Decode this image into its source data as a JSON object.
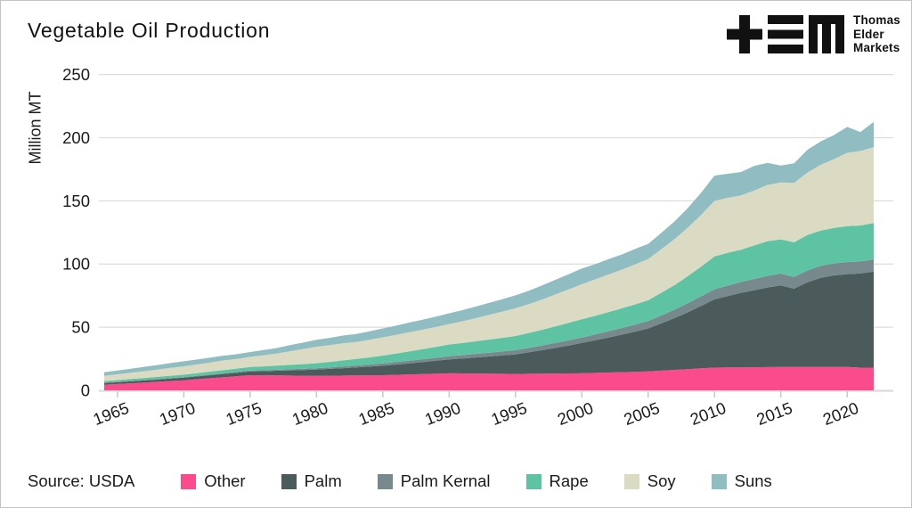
{
  "meta": {
    "source": "Source: USDA"
  },
  "logo": {
    "lines": [
      "Thomas",
      "Elder",
      "Markets"
    ],
    "color": "#111111"
  },
  "chart_data": {
    "type": "area",
    "stacked": true,
    "title": "Vegetable Oil Production",
    "ylabel": "Million MT",
    "ylim": [
      0,
      250
    ],
    "yticks": [
      0,
      50,
      100,
      150,
      200,
      250
    ],
    "xticks": [
      1965,
      1970,
      1975,
      1980,
      1985,
      1990,
      1995,
      2000,
      2005,
      2010,
      2015,
      2020
    ],
    "x_range": [
      1964,
      2022
    ],
    "grid": "horizontal-light",
    "legend_position": "bottom",
    "axis_text_color": "#1a1a1a",
    "gridline_color": "#dcdcdc",
    "tick_color": "#c9c9c9",
    "x": [
      1964,
      1965,
      1966,
      1967,
      1968,
      1969,
      1970,
      1971,
      1972,
      1973,
      1974,
      1975,
      1976,
      1977,
      1978,
      1979,
      1980,
      1981,
      1982,
      1983,
      1984,
      1985,
      1986,
      1987,
      1988,
      1989,
      1990,
      1991,
      1992,
      1993,
      1994,
      1995,
      1996,
      1997,
      1998,
      1999,
      2000,
      2001,
      2002,
      2003,
      2004,
      2005,
      2006,
      2007,
      2008,
      2009,
      2010,
      2011,
      2012,
      2013,
      2014,
      2015,
      2016,
      2017,
      2018,
      2019,
      2020,
      2021,
      2022
    ],
    "series": [
      {
        "name": "Other",
        "color": "#fa4b8c",
        "values": [
          4.5,
          5,
          5.6,
          6.2,
          6.8,
          7.4,
          8,
          8.8,
          9.6,
          10.4,
          11.2,
          12,
          11.9,
          11.8,
          11.7,
          11.6,
          11.5,
          11.6,
          11.7,
          11.8,
          11.9,
          12,
          12.3,
          12.6,
          12.9,
          13.2,
          13.5,
          13.4,
          13.3,
          13.2,
          13.1,
          13,
          13.1,
          13.2,
          13.3,
          13.4,
          13.5,
          13.8,
          14.1,
          14.4,
          14.7,
          15,
          15.6,
          16.2,
          16.8,
          17.4,
          18,
          18.1,
          18.2,
          18.3,
          18.4,
          18.5,
          18.5,
          18.5,
          18.5,
          18.5,
          18.5,
          18,
          18
        ]
      },
      {
        "name": "Palm",
        "color": "#4b5b5c",
        "values": [
          1.3,
          1.4,
          1.5,
          1.6,
          1.7,
          1.9,
          2,
          2.2,
          2.4,
          2.6,
          2.8,
          3,
          3.3,
          3.7,
          4.1,
          4.5,
          5,
          5.4,
          5.9,
          6.4,
          6.9,
          7.5,
          8.1,
          8.8,
          9.5,
          10.2,
          11,
          11.8,
          12.7,
          13.6,
          14.5,
          15.5,
          17,
          18.6,
          20.3,
          22.1,
          24,
          25.8,
          27.7,
          29.7,
          31.8,
          34,
          37.5,
          41,
          45,
          49.5,
          54,
          56.5,
          59,
          61,
          63,
          64.5,
          62,
          67,
          70.5,
          72.5,
          73.5,
          74.5,
          76
        ]
      },
      {
        "name": "Palm Kernal",
        "color": "#77898c",
        "values": [
          0.3,
          0.33,
          0.36,
          0.4,
          0.43,
          0.46,
          0.5,
          0.54,
          0.58,
          0.62,
          0.66,
          0.7,
          0.76,
          0.82,
          0.88,
          0.94,
          1,
          1.15,
          1.3,
          1.45,
          1.6,
          1.8,
          1.94,
          2.08,
          2.22,
          2.36,
          2.5,
          2.66,
          2.82,
          2.98,
          3.14,
          3.3,
          3.5,
          3.7,
          3.9,
          4.1,
          4.3,
          4.6,
          4.9,
          5.2,
          5.5,
          5.8,
          6.2,
          6.7,
          7.1,
          7.6,
          8,
          8.3,
          8.6,
          8.9,
          9.2,
          9.5,
          9.2,
          9.4,
          9.5,
          9.5,
          9.5,
          9.5,
          9.5
        ]
      },
      {
        "name": "Rape",
        "color": "#5ec3a2",
        "values": [
          1.3,
          1.4,
          1.5,
          1.6,
          1.7,
          1.8,
          1.9,
          2.1,
          2.3,
          2.4,
          2.6,
          2.8,
          3,
          3.2,
          3.5,
          3.7,
          4,
          4.4,
          4.8,
          5.2,
          5.7,
          6.2,
          6.8,
          7.4,
          8,
          8.6,
          9.3,
          9.6,
          10,
          10.4,
          10.8,
          11.2,
          11.8,
          12.4,
          13.1,
          13.8,
          14.5,
          14.8,
          15.2,
          15.6,
          16,
          16.5,
          18,
          19.5,
          21.5,
          23.5,
          26,
          26,
          25.5,
          26.5,
          27.5,
          27,
          27.5,
          28,
          28,
          28,
          28.5,
          28.5,
          29
        ]
      },
      {
        "name": "Soy",
        "color": "#dbdac3",
        "values": [
          4.2,
          4.6,
          5,
          5.4,
          5.8,
          6.2,
          6.6,
          6.9,
          7.2,
          7.7,
          7.6,
          8,
          8.8,
          9.6,
          10.8,
          12,
          13,
          13.2,
          13.6,
          13.4,
          14,
          14.5,
          14.8,
          15.2,
          15.4,
          15.8,
          16.2,
          17.2,
          18.3,
          19.5,
          20.8,
          22,
          22.8,
          24,
          25.3,
          26.5,
          27.7,
          28.8,
          29.8,
          30.6,
          31.6,
          32.7,
          34.5,
          36.5,
          38.5,
          41,
          44,
          43.5,
          43,
          43.5,
          44.5,
          45,
          47,
          49.5,
          52,
          54.5,
          58,
          59,
          60
        ]
      },
      {
        "name": "Suns",
        "color": "#90bdc2",
        "values": [
          2.8,
          3,
          3.2,
          3.4,
          3.6,
          3.8,
          4,
          3.9,
          3.9,
          3.8,
          3.8,
          3.8,
          4.1,
          4.4,
          4.8,
          5.1,
          5.5,
          5.8,
          6.1,
          6.4,
          6.7,
          7,
          7.3,
          7.6,
          7.9,
          8.2,
          8.5,
          8.8,
          9.2,
          9.5,
          9.8,
          10.2,
          10.6,
          11.1,
          11.6,
          12,
          12.5,
          12,
          12.2,
          12,
          12.3,
          12,
          13,
          14,
          15.5,
          17.5,
          20,
          19,
          18.5,
          19.5,
          17.5,
          13.5,
          15.5,
          18,
          18.5,
          19,
          20.5,
          15,
          20
        ]
      }
    ]
  }
}
